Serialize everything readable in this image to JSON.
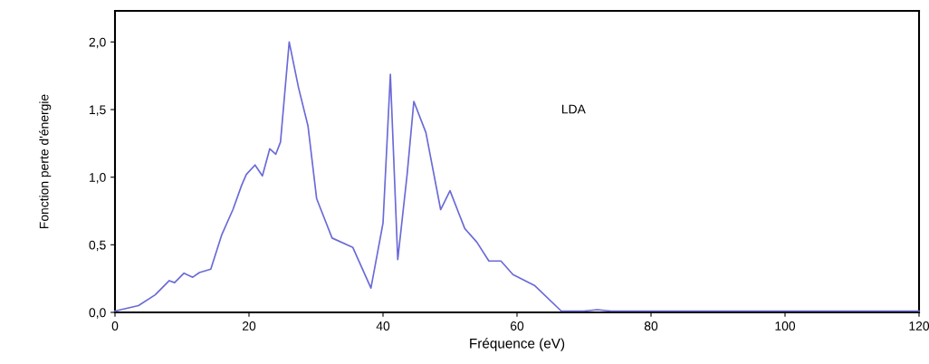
{
  "chart_data": {
    "type": "line",
    "xlabel": "Fréquence (eV)",
    "ylabel": "Fonction perte d'énergie",
    "annotations": [
      "LDA"
    ],
    "series": [
      {
        "color": "#6a6ad8",
        "x": [
          0,
          3.5,
          6,
          8.1,
          8.9,
          10.3,
          11.6,
          12.6,
          14.3,
          15.9,
          17.6,
          18.9,
          19.6,
          20.9,
          22.0,
          23.1,
          24.0,
          24.7,
          26.0,
          27.4,
          28.8,
          30.1,
          32.4,
          35.5,
          38.2,
          40.0,
          41.1,
          42.2,
          43.6,
          44.6,
          46.4,
          48.6,
          50.0,
          52.2,
          54.0,
          55.8,
          57.6,
          59.4,
          62.6,
          66.6,
          70,
          72,
          74,
          80,
          90,
          100,
          110,
          120
        ],
        "values": [
          0.01,
          0.05,
          0.13,
          0.235,
          0.22,
          0.29,
          0.26,
          0.295,
          0.32,
          0.57,
          0.76,
          0.94,
          1.02,
          1.09,
          1.01,
          1.21,
          1.17,
          1.26,
          2.0,
          1.66,
          1.38,
          0.84,
          0.55,
          0.48,
          0.18,
          0.66,
          1.76,
          0.39,
          1.02,
          1.56,
          1.33,
          0.76,
          0.9,
          0.62,
          0.52,
          0.38,
          0.38,
          0.28,
          0.2,
          0.01,
          0.01,
          0.02,
          0.01,
          0.01,
          0.01,
          0.01,
          0.01,
          0.01
        ]
      }
    ],
    "xlim": [
      0,
      120
    ],
    "xticks": [
      0,
      20,
      40,
      60,
      80,
      100,
      120
    ],
    "ylim": [
      0,
      2.23
    ],
    "yticks": [
      {
        "value": 0,
        "label": "0,0"
      },
      {
        "value": 0.5,
        "label": "0,5"
      },
      {
        "value": 1.0,
        "label": "1,0"
      },
      {
        "value": 1.5,
        "label": "1,5"
      },
      {
        "value": 2.0,
        "label": "2,0"
      }
    ],
    "grid": false,
    "legend": false
  }
}
